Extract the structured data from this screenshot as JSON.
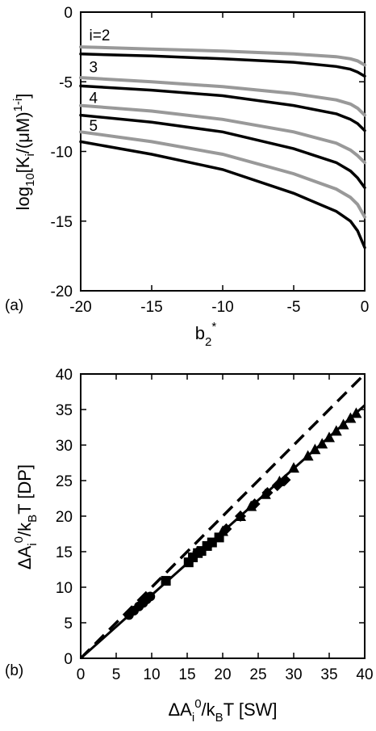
{
  "chart_data": [
    {
      "type": "line",
      "panel_label": "(a)",
      "xlabel": {
        "main": "b",
        "sub": "2",
        "sup": "*"
      },
      "ylabel": {
        "p1": "log",
        "s1": "10",
        "p2": "[K",
        "s2": "i",
        "p3": "/(μM)",
        "s3": "1-i",
        "p4": "]"
      },
      "xlim": [
        -20,
        0
      ],
      "ylim": [
        -20,
        0
      ],
      "xticks": [
        -20,
        -15,
        -10,
        -5,
        0
      ],
      "yticks": [
        0,
        -5,
        -10,
        -15,
        -20
      ],
      "xtick_labels": [
        "-20",
        "-15",
        "-10",
        "-5",
        "0"
      ],
      "ytick_labels": [
        "0",
        "-5",
        "-10",
        "-15",
        "-20"
      ],
      "grid": false,
      "series": [
        {
          "name": "i=2",
          "style": "gray",
          "color": "#999999",
          "x": [
            -20,
            -15,
            -10,
            -5,
            -2,
            -1,
            -0.5,
            0
          ],
          "y": [
            -2.5,
            -2.65,
            -2.8,
            -3.0,
            -3.2,
            -3.35,
            -3.5,
            -3.8
          ]
        },
        {
          "name": "i=2",
          "style": "black",
          "color": "#000000",
          "x": [
            -20,
            -15,
            -10,
            -5,
            -2,
            -1,
            -0.5,
            0
          ],
          "y": [
            -3.0,
            -3.15,
            -3.35,
            -3.6,
            -3.9,
            -4.1,
            -4.3,
            -4.6
          ]
        },
        {
          "name": "3",
          "style": "gray",
          "color": "#999999",
          "x": [
            -20,
            -15,
            -10,
            -5,
            -2,
            -1,
            -0.5,
            0
          ],
          "y": [
            -4.7,
            -5.0,
            -5.35,
            -5.85,
            -6.3,
            -6.6,
            -6.9,
            -7.4
          ]
        },
        {
          "name": "3",
          "style": "black",
          "color": "#000000",
          "x": [
            -20,
            -15,
            -10,
            -5,
            -2,
            -1,
            -0.5,
            0
          ],
          "y": [
            -5.3,
            -5.6,
            -6.0,
            -6.7,
            -7.3,
            -7.7,
            -8.0,
            -8.5
          ]
        },
        {
          "name": "4",
          "style": "gray",
          "color": "#999999",
          "x": [
            -20,
            -15,
            -10,
            -5,
            -2,
            -1,
            -0.5,
            0
          ],
          "y": [
            -6.7,
            -7.1,
            -7.7,
            -8.6,
            -9.4,
            -9.9,
            -10.3,
            -10.8
          ]
        },
        {
          "name": "4",
          "style": "black",
          "color": "#000000",
          "x": [
            -20,
            -15,
            -10,
            -5,
            -2,
            -1,
            -0.5,
            0
          ],
          "y": [
            -7.4,
            -7.9,
            -8.6,
            -9.8,
            -10.8,
            -11.4,
            -11.9,
            -12.6
          ]
        },
        {
          "name": "5",
          "style": "gray",
          "color": "#999999",
          "x": [
            -20,
            -15,
            -10,
            -5,
            -2,
            -1,
            -0.5,
            0
          ],
          "y": [
            -8.6,
            -9.3,
            -10.2,
            -11.6,
            -12.7,
            -13.3,
            -13.8,
            -14.7
          ]
        },
        {
          "name": "5",
          "style": "black",
          "color": "#000000",
          "x": [
            -20,
            -15,
            -10,
            -5,
            -2,
            -1,
            -0.5,
            0
          ],
          "y": [
            -9.3,
            -10.2,
            -11.3,
            -13.0,
            -14.3,
            -15.0,
            -15.7,
            -16.9
          ]
        }
      ],
      "curve_labels": [
        {
          "text": "i=2",
          "x": -19.4,
          "y": -1.9
        },
        {
          "text": "3",
          "x": -19.4,
          "y": -4.2
        },
        {
          "text": "4",
          "x": -19.4,
          "y": -6.4
        },
        {
          "text": "5",
          "x": -19.4,
          "y": -8.4
        }
      ]
    },
    {
      "type": "scatter",
      "panel_label": "(b)",
      "xlabel": {
        "p1": "ΔA",
        "s1": "i",
        "sup1": "0",
        "p2": "/k",
        "s2": "B",
        "p3": "T [SW]"
      },
      "ylabel": {
        "p1": "ΔA",
        "s1": "i",
        "sup1": "0",
        "p2": "/k",
        "s2": "B",
        "p3": "T [DP]"
      },
      "xlim": [
        0,
        40
      ],
      "ylim": [
        0,
        40
      ],
      "xticks": [
        0,
        5,
        10,
        15,
        20,
        25,
        30,
        35,
        40
      ],
      "yticks": [
        0,
        5,
        10,
        15,
        20,
        25,
        30,
        35,
        40
      ],
      "xtick_labels": [
        "0",
        "5",
        "10",
        "15",
        "20",
        "25",
        "30",
        "35",
        "40"
      ],
      "ytick_labels": [
        "0",
        "5",
        "10",
        "15",
        "20",
        "25",
        "30",
        "35",
        "40"
      ],
      "grid": false,
      "series": [
        {
          "name": "",
          "style": "solid-line",
          "color": "#000000",
          "x": [
            0,
            40
          ],
          "y": [
            0,
            35.6
          ]
        },
        {
          "name": "",
          "style": "dashed-line",
          "color": "#000000",
          "x": [
            0,
            40
          ],
          "y": [
            0,
            40
          ]
        },
        {
          "name": "",
          "marker": "circle",
          "color": "#000000",
          "x": [
            6.8,
            7.5,
            8.2,
            8.8,
            9.3,
            9.8
          ],
          "y": [
            6.1,
            6.7,
            7.3,
            7.8,
            8.3,
            8.7
          ]
        },
        {
          "name": "",
          "marker": "square",
          "color": "#000000",
          "x": [
            12.0,
            15.2,
            15.8,
            16.5,
            17.0,
            17.8,
            18.5,
            19.5
          ],
          "y": [
            10.9,
            13.5,
            14.2,
            14.8,
            15.1,
            15.8,
            16.3,
            17.0
          ]
        },
        {
          "name": "",
          "marker": "diamond",
          "color": "#000000",
          "x": [
            16.5,
            18.3,
            20.5,
            22.5,
            24.5,
            26.3,
            27.7,
            28.8
          ],
          "y": [
            15.0,
            16.2,
            18.2,
            20.0,
            21.7,
            23.3,
            24.3,
            25.1
          ]
        },
        {
          "name": "",
          "marker": "triangle",
          "color": "#000000",
          "x": [
            20.0,
            22.5,
            24.0,
            26.0,
            28.0,
            30.0,
            32.0,
            33.0,
            34.0,
            35.0,
            36.0,
            37.0,
            38.0,
            38.8
          ],
          "y": [
            17.9,
            20.0,
            21.4,
            23.1,
            24.9,
            26.8,
            28.5,
            29.4,
            30.2,
            31.1,
            32.0,
            32.9,
            33.8,
            34.5
          ]
        }
      ]
    }
  ]
}
